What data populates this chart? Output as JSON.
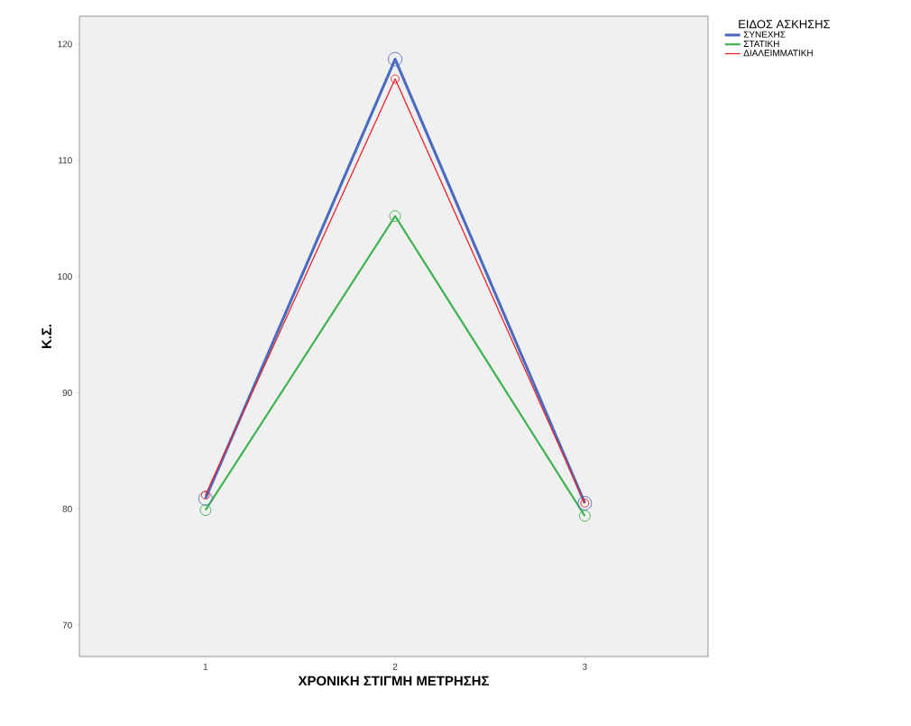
{
  "chart_data": {
    "type": "line",
    "xlabel": "ΧΡΟΝΙΚΗ ΣΤΙΓΜΗ ΜΕΤΡΗΣΗΣ",
    "ylabel": "Κ.Σ.",
    "legend_title": "ΕΙΔΟΣ ΑΣΚΗΣΗΣ",
    "categories": [
      "1",
      "2",
      "3"
    ],
    "series": [
      {
        "name": "ΣΥΝΕΧΗΣ",
        "color": "#4a6bbf",
        "values": [
          80.9,
          118.7,
          80.5
        ]
      },
      {
        "name": "ΣΤΑΤΙΚΗ",
        "color": "#3fb34f",
        "values": [
          79.9,
          105.2,
          79.4
        ]
      },
      {
        "name": "ΔΙΑΛΕΙΜΜΑΤΙΚΗ",
        "color": "#e8242a",
        "values": [
          81.2,
          117.0,
          80.5
        ]
      }
    ],
    "ylim": [
      67.3,
      122.4
    ],
    "yticks": [
      70,
      80,
      90,
      100,
      110,
      120
    ],
    "grid": false,
    "legend": "top right",
    "marker": "circle",
    "line_style": "solid"
  }
}
